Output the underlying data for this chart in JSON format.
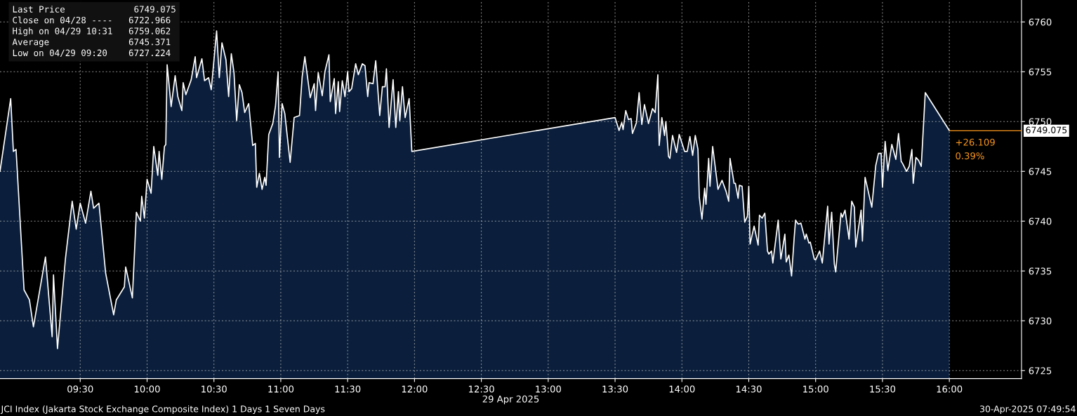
{
  "chart_data": {
    "type": "area",
    "x": [
      8.9,
      8.98,
      9.0,
      9.02,
      9.08,
      9.12,
      9.15,
      9.24,
      9.29,
      9.3,
      9.33,
      9.39,
      9.44,
      9.47,
      9.5,
      9.54,
      9.58,
      9.6,
      9.64,
      9.69,
      9.75,
      9.77,
      9.83,
      9.84,
      9.89,
      9.92,
      9.95,
      9.96,
      9.98,
      10.0,
      10.03,
      10.05,
      10.08,
      10.09,
      10.11,
      10.13,
      10.14,
      10.15,
      10.18,
      10.21,
      10.23,
      10.26,
      10.27,
      10.29,
      10.33,
      10.36,
      10.37,
      10.41,
      10.43,
      10.46,
      10.48,
      10.52,
      10.54,
      10.56,
      10.59,
      10.61,
      10.63,
      10.65,
      10.67,
      10.69,
      10.71,
      10.73,
      10.76,
      10.79,
      10.81,
      10.82,
      10.84,
      10.86,
      10.88,
      10.89,
      10.91,
      10.94,
      10.96,
      10.98,
      10.99,
      11.01,
      11.03,
      11.07,
      11.1,
      11.14,
      11.16,
      11.18,
      11.22,
      11.25,
      11.26,
      11.28,
      11.31,
      11.33,
      11.36,
      11.37,
      11.4,
      11.41,
      11.43,
      11.44,
      11.46,
      11.48,
      11.5,
      11.51,
      11.53,
      11.56,
      11.58,
      11.61,
      11.63,
      11.65,
      11.66,
      11.69,
      11.71,
      11.74,
      11.76,
      11.78,
      11.79,
      11.81,
      11.84,
      11.86,
      11.88,
      11.89,
      11.91,
      11.93,
      11.96,
      11.98,
      13.5,
      13.53,
      13.55,
      13.56,
      13.58,
      13.6,
      13.62,
      13.63,
      13.66,
      13.68,
      13.7,
      13.72,
      13.75,
      13.78,
      13.8,
      13.82,
      13.83,
      13.85,
      13.87,
      13.88,
      13.9,
      13.91,
      13.93,
      13.96,
      13.98,
      14.02,
      14.04,
      14.06,
      14.08,
      14.1,
      14.12,
      14.13,
      14.15,
      14.17,
      14.18,
      14.2,
      14.21,
      14.23,
      14.27,
      14.3,
      14.33,
      14.35,
      14.36,
      14.39,
      14.4,
      14.42,
      14.43,
      14.45,
      14.47,
      14.49,
      14.5,
      14.51,
      14.54,
      14.57,
      14.58,
      14.6,
      14.62,
      14.64,
      14.65,
      14.67,
      14.68,
      14.72,
      14.74,
      14.77,
      14.78,
      14.8,
      14.82,
      14.84,
      14.85,
      14.87,
      14.89,
      14.92,
      14.93,
      14.95,
      14.96,
      14.99,
      15.0,
      15.03,
      15.05,
      15.09,
      15.1,
      15.12,
      15.14,
      15.15,
      15.19,
      15.2,
      15.22,
      15.25,
      15.27,
      15.29,
      15.3,
      15.34,
      15.35,
      15.37,
      15.42,
      15.45,
      15.47,
      15.49,
      15.5,
      15.52,
      15.54,
      15.57,
      15.6,
      15.62,
      15.64,
      15.65,
      15.68,
      15.7,
      15.72,
      15.73,
      15.75,
      15.77,
      15.79,
      15.82,
      16.0
    ],
    "series": [
      {
        "color": "#ffffff",
        "values": [
          6745.0,
          6752.3,
          6747.0,
          6747.2,
          6733.1,
          6732.1,
          6729.4,
          6736.4,
          6728.4,
          6734.6,
          6727.2,
          6736.3,
          6742.0,
          6739.2,
          6741.8,
          6739.8,
          6743.0,
          6741.3,
          6741.8,
          6734.8,
          6730.6,
          6732.1,
          6733.4,
          6735.4,
          6732.3,
          6740.9,
          6740.0,
          6742.5,
          6740.3,
          6744.2,
          6742.8,
          6747.5,
          6744.6,
          6747.0,
          6744.2,
          6747.5,
          6747.7,
          6755.7,
          6751.5,
          6754.6,
          6752.5,
          6751.1,
          6753.9,
          6752.7,
          6754.2,
          6756.5,
          6754.4,
          6756.3,
          6754.1,
          6754.4,
          6753.2,
          6759.1,
          6754.4,
          6757.9,
          6756.2,
          6752.5,
          6756.8,
          6754.9,
          6750.1,
          6753.7,
          6752.9,
          6750.9,
          6751.8,
          6747.6,
          6747.8,
          6743.4,
          6744.8,
          6743.2,
          6744.4,
          6743.6,
          6748.7,
          6749.8,
          6751.5,
          6755.0,
          6746.4,
          6751.8,
          6750.8,
          6745.9,
          6750.4,
          6750.6,
          6754.5,
          6756.5,
          6752.4,
          6753.8,
          6751.1,
          6754.9,
          6752.6,
          6755.0,
          6756.7,
          6752.0,
          6754.3,
          6750.8,
          6754.0,
          6751.0,
          6754.1,
          6752.5,
          6755.0,
          6753.0,
          6753.3,
          6755.8,
          6754.7,
          6755.8,
          6755.6,
          6752.5,
          6753.9,
          6753.8,
          6756.1,
          6750.6,
          6753.5,
          6753.5,
          6755.3,
          6749.4,
          6754.2,
          6749.4,
          6753.0,
          6750.1,
          6753.5,
          6750.4,
          6752.3,
          6747.0,
          6750.4,
          6749.1,
          6749.9,
          6749.2,
          6751.1,
          6750.2,
          6750.3,
          6748.8,
          6749.9,
          6752.9,
          6749.7,
          6751.7,
          6749.8,
          6751.3,
          6750.9,
          6754.7,
          6747.6,
          6750.4,
          6748.6,
          6750.0,
          6746.5,
          6746.3,
          6748.6,
          6746.9,
          6748.7,
          6747.0,
          6747.0,
          6748.5,
          6746.6,
          6748.6,
          6747.2,
          6742.4,
          6740.2,
          6743.3,
          6741.7,
          6746.3,
          6743.5,
          6747.5,
          6743.2,
          6744.1,
          6743.0,
          6742.0,
          6746.3,
          6743.8,
          6743.8,
          6742.3,
          6743.6,
          6743.5,
          6739.9,
          6740.5,
          6743.5,
          6737.7,
          6739.5,
          6737.6,
          6740.6,
          6740.3,
          6740.8,
          6737.0,
          6736.7,
          6737.0,
          6735.8,
          6740.1,
          6736.2,
          6738.7,
          6735.9,
          6736.6,
          6734.5,
          6738.4,
          6740.1,
          6739.7,
          6739.8,
          6738.2,
          6738.7,
          6737.8,
          6737.9,
          6736.2,
          6736.1,
          6737.0,
          6735.8,
          6741.5,
          6737.7,
          6740.9,
          6735.7,
          6734.9,
          6740.8,
          6740.4,
          6741.1,
          6738.2,
          6742.0,
          6741.4,
          6737.4,
          6741.1,
          6738.0,
          6744.4,
          6741.4,
          6745.6,
          6746.8,
          6746.8,
          6743.4,
          6748.0,
          6745.1,
          6747.7,
          6746.2,
          6748.8,
          6746.0,
          6745.8,
          6745.0,
          6745.5,
          6747.2,
          6743.8,
          6746.4,
          6746.1,
          6745.5,
          6752.9,
          6749.1
        ]
      }
    ],
    "xlim": [
      8.9,
      16.54
    ],
    "ylim": [
      6724.2,
      6762.2
    ],
    "xticks": [
      {
        "value": 9.5,
        "label": "09:30"
      },
      {
        "value": 10.0,
        "label": "10:00"
      },
      {
        "value": 10.5,
        "label": "10:30"
      },
      {
        "value": 11.0,
        "label": "11:00"
      },
      {
        "value": 11.5,
        "label": "11:30"
      },
      {
        "value": 12.0,
        "label": "12:00"
      },
      {
        "value": 12.5,
        "label": "12:30"
      },
      {
        "value": 13.0,
        "label": "13:00"
      },
      {
        "value": 13.5,
        "label": "13:30"
      },
      {
        "value": 14.0,
        "label": "14:00"
      },
      {
        "value": 14.5,
        "label": "14:30"
      },
      {
        "value": 15.0,
        "label": "15:00"
      },
      {
        "value": 15.5,
        "label": "15:30"
      },
      {
        "value": 16.0,
        "label": "16:00"
      }
    ],
    "yticks": [
      6725,
      6730,
      6735,
      6740,
      6745,
      6750,
      6755,
      6760
    ],
    "xlabel": "29 Apr 2025",
    "grid": true,
    "ref_lines": [
      {
        "axis": "y",
        "value": 6749.075,
        "label": "6749.075",
        "color": "#f7941d"
      }
    ],
    "annotations": [
      "Last Price             6749.075",
      "Close on 04/28 ----   6722.966",
      "High on 04/29 10:31   6759.062",
      "Average               6745.371",
      "Low on 04/29 09:20    6727.224",
      {
        "text": "+26.109",
        "x": 16.0,
        "y": 6749.075
      },
      {
        "text": "0.39%",
        "x": 16.0,
        "y": 6749.075
      },
      "JCI Index (Jakarta Stock Exchange Composite Index) 1 Days 1 Seven Days",
      "30-Apr-2025 07:49:54"
    ]
  }
}
